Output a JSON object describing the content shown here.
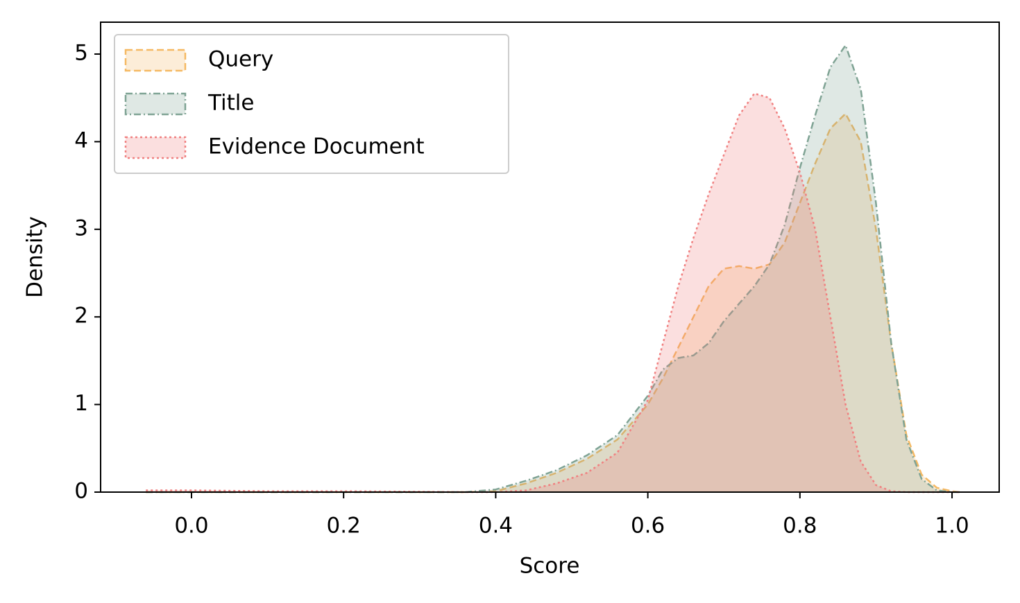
{
  "chart_data": {
    "type": "kde",
    "x_label": "Score",
    "y_label": "Density",
    "x": [
      -0.06,
      0.0,
      0.1,
      0.2,
      0.3,
      0.36,
      0.4,
      0.44,
      0.48,
      0.52,
      0.56,
      0.6,
      0.62,
      0.64,
      0.66,
      0.68,
      0.7,
      0.72,
      0.74,
      0.76,
      0.78,
      0.8,
      0.82,
      0.84,
      0.86,
      0.88,
      0.9,
      0.92,
      0.94,
      0.96,
      0.98,
      1.0,
      1.01
    ],
    "series": [
      {
        "name": "Query",
        "color": "#f5b963",
        "dash": "dashed",
        "values": [
          0,
          0,
          0,
          0,
          0,
          0,
          0.01,
          0.1,
          0.22,
          0.38,
          0.6,
          1.0,
          1.3,
          1.65,
          2.0,
          2.35,
          2.55,
          2.58,
          2.55,
          2.6,
          2.85,
          3.3,
          3.75,
          4.15,
          4.32,
          4.0,
          3.0,
          1.7,
          0.65,
          0.2,
          0.05,
          0.01,
          0
        ]
      },
      {
        "name": "Title",
        "color": "#7fa394",
        "dash": "dashdot",
        "values": [
          0,
          0,
          0,
          0,
          0,
          0,
          0.03,
          0.13,
          0.25,
          0.42,
          0.65,
          1.1,
          1.4,
          1.53,
          1.56,
          1.7,
          1.95,
          2.15,
          2.35,
          2.6,
          3.05,
          3.7,
          4.3,
          4.85,
          5.1,
          4.6,
          3.3,
          1.7,
          0.6,
          0.15,
          0.02,
          0,
          0
        ]
      },
      {
        "name": "Evidence Document",
        "color": "#f08080",
        "dash": "dotted",
        "values": [
          0.02,
          0.02,
          0.01,
          0.01,
          0.005,
          0,
          0,
          0.02,
          0.1,
          0.22,
          0.45,
          1.05,
          1.7,
          2.35,
          2.9,
          3.4,
          3.85,
          4.3,
          4.55,
          4.5,
          4.15,
          3.65,
          3.0,
          2.0,
          1.0,
          0.35,
          0.08,
          0.01,
          0,
          0,
          0,
          0,
          0
        ]
      }
    ],
    "xlim": [
      -0.1195,
      1.062
    ],
    "ylim": [
      0,
      5.364
    ],
    "xticks": [
      {
        "value": 0,
        "label": "0.0"
      },
      0.2,
      0.4,
      0.6,
      0.8,
      {
        "value": 1,
        "label": "1.0"
      }
    ],
    "yticks": [
      0,
      1,
      2,
      3,
      4,
      5
    ],
    "grid": false,
    "legend": "upper left"
  }
}
